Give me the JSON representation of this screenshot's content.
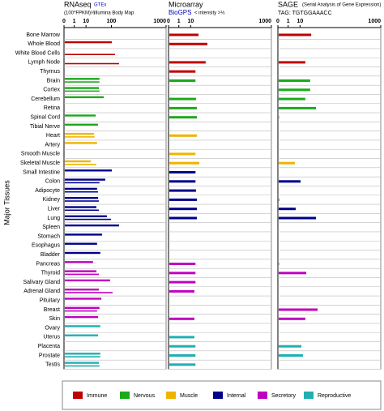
{
  "y_label": "Major Tissues",
  "categories": [
    "Bone Marrow",
    "Whole Blood",
    "White Blood Cells",
    "Lymph Node",
    "Thymus",
    "Brain",
    "Cortex",
    "Cerebellum",
    "Retina",
    "Spinal Cord",
    "Tibial Nerve",
    "Heart",
    "Artery",
    "Smooth Muscle",
    "Skeletal Muscle",
    "Small Intestine",
    "Colon",
    "Adipocyte",
    "Kidney",
    "Liver",
    "Lung",
    "Spleen",
    "Stomach",
    "Esophagus",
    "Bladder",
    "Pancreas",
    "Thyroid",
    "Salivary Gland",
    "Adrenal Gland",
    "Pituitary",
    "Breast",
    "Skin",
    "Ovary",
    "Uterus",
    "Placenta",
    "Prostate",
    "Testis"
  ],
  "colors": [
    "#c00000",
    "#c00000",
    "#c00000",
    "#c00000",
    "#c00000",
    "#1aaa1a",
    "#1aaa1a",
    "#1aaa1a",
    "#1aaa1a",
    "#1aaa1a",
    "#1aaa1a",
    "#f0b400",
    "#f0b400",
    "#f0b400",
    "#f0b400",
    "#00008b",
    "#00008b",
    "#00008b",
    "#00008b",
    "#00008b",
    "#00008b",
    "#00008b",
    "#00008b",
    "#00008b",
    "#00008b",
    "#c000c0",
    "#c000c0",
    "#c000c0",
    "#c000c0",
    "#c000c0",
    "#c000c0",
    "#c000c0",
    "#20b0b0",
    "#20b0b0",
    "#20b0b0",
    "#20b0b0",
    "#20b0b0"
  ],
  "legend": [
    {
      "name": "Immune",
      "color": "#c00000"
    },
    {
      "name": "Nervous",
      "color": "#1aaa1a"
    },
    {
      "name": "Muscle",
      "color": "#f0b400"
    },
    {
      "name": "Internal",
      "color": "#00008b"
    },
    {
      "name": "Secretory",
      "color": "#c000c0"
    },
    {
      "name": "Reproductive",
      "color": "#20b0b0"
    }
  ],
  "chart_data": [
    {
      "type": "bar",
      "orientation": "horizontal",
      "title": "RNAseq",
      "subtitle": "(100*FPKM)⅓",
      "xscale": "cube-root",
      "xlim": [
        0,
        1000
      ],
      "xticks": [
        0,
        1,
        10,
        100,
        1000
      ],
      "grid": true,
      "series": [
        {
          "name": "GTEx",
          "values": [
            null,
            103,
            null,
            null,
            null,
            42,
            40,
            59,
            null,
            30,
            37,
            25,
            34,
            null,
            18,
            103,
            66,
            34,
            37,
            32,
            74,
            157,
            52,
            34,
            45,
            23,
            32,
            92,
            40,
            49,
            42,
            37,
            45,
            37,
            null,
            45,
            40
          ]
        },
        {
          "name": "Illumina Body Map",
          "values": [
            null,
            null,
            125,
            157,
            null,
            42,
            42,
            null,
            null,
            null,
            null,
            27,
            null,
            null,
            32,
            null,
            42,
            37,
            40,
            40,
            98,
            null,
            null,
            null,
            null,
            null,
            40,
            null,
            108,
            null,
            34,
            null,
            null,
            null,
            null,
            45,
            42
          ]
        }
      ]
    },
    {
      "type": "bar",
      "orientation": "horizontal",
      "title": "Microarray",
      "subtitle": "< intensity >⅓",
      "xscale": "cube-root",
      "xlim": [
        0,
        1000
      ],
      "xticks": [
        0,
        1,
        10,
        1000
      ],
      "grid": true,
      "series": [
        {
          "name": "BioGPS",
          "values": [
            25,
            54,
            null,
            47,
            18,
            18,
            null,
            19,
            21,
            21,
            null,
            21,
            null,
            18,
            27,
            18,
            18,
            19,
            21,
            21,
            21,
            null,
            null,
            null,
            null,
            18,
            18,
            18,
            16,
            null,
            null,
            16,
            null,
            16,
            18,
            18,
            18
          ]
        }
      ]
    },
    {
      "type": "bar",
      "orientation": "horizontal",
      "title": "SAGE",
      "note": "(Serial Analysis of Gene Expression)",
      "subtitle": "TAG: TGTGGAAACC",
      "xscale": "cube-root",
      "xlim": [
        0,
        1000
      ],
      "xticks": [
        0,
        1,
        10,
        1000
      ],
      "grid": true,
      "series": [
        {
          "values": [
            34,
            null,
            null,
            19,
            null,
            31,
            31,
            19,
            51,
            0.001,
            null,
            null,
            null,
            null,
            4.5,
            null,
            10.7,
            null,
            0.001,
            5.2,
            51,
            null,
            null,
            null,
            null,
            0.001,
            21,
            null,
            null,
            null,
            57.5,
            19,
            null,
            null,
            11.9,
            14.5,
            null
          ]
        }
      ]
    }
  ]
}
